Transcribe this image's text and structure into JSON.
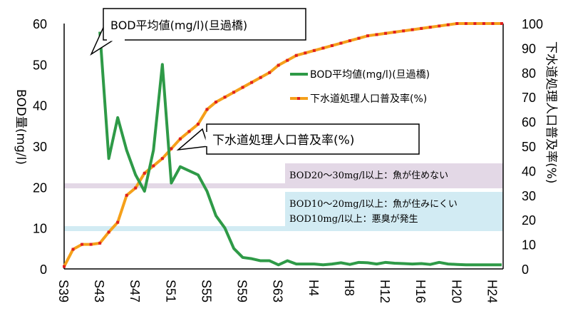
{
  "chart_data": {
    "type": "line",
    "x_categories": [
      "S39",
      "S40",
      "S41",
      "S42",
      "S43",
      "S44",
      "S45",
      "S46",
      "S47",
      "S48",
      "S49",
      "S50",
      "S51",
      "S52",
      "S53",
      "S54",
      "S55",
      "S56",
      "S57",
      "S58",
      "S59",
      "S60",
      "S61",
      "S62",
      "S63",
      "H1",
      "H2",
      "H3",
      "H4",
      "H5",
      "H6",
      "H7",
      "H8",
      "H9",
      "H10",
      "H11",
      "H12",
      "H13",
      "H14",
      "H15",
      "H16",
      "H17",
      "H18",
      "H19",
      "H20",
      "H21",
      "H22",
      "H23",
      "H24",
      "H25"
    ],
    "x_tick_labels": [
      "S39",
      "S43",
      "S47",
      "S51",
      "S55",
      "S59",
      "S63",
      "H4",
      "H8",
      "H12",
      "H16",
      "H20",
      "H24"
    ],
    "series": [
      {
        "name": "BOD平均値(mg/l)(旦過橋)",
        "axis": "left",
        "color": "#2e9a47",
        "start_index": 4,
        "values": [
          58,
          27,
          37,
          29,
          23,
          19,
          29,
          50,
          21,
          25,
          24,
          23,
          19,
          13,
          10,
          5,
          2.8,
          2.5,
          2,
          2,
          1,
          2,
          1.2,
          1.2,
          1.2,
          1,
          1.2,
          1.5,
          1.1,
          1.6,
          1.5,
          1.2,
          1.6,
          1.4,
          1.3,
          1.2,
          1.3,
          1.1,
          1.6,
          1.2,
          1.1,
          1,
          1,
          1,
          1,
          1
        ]
      },
      {
        "name": "下水道処理人口普及率(%)",
        "axis": "right",
        "color": "#f5a01a",
        "marker_color": "#e02020",
        "start_index": 0,
        "values": [
          1,
          8,
          10,
          10,
          10.5,
          15,
          19,
          30,
          33,
          39,
          42,
          45,
          49,
          53,
          56,
          59,
          65,
          68,
          70,
          72,
          74,
          76,
          78,
          80,
          83,
          85,
          87,
          88,
          89,
          90,
          91,
          92,
          93,
          94,
          95,
          95.5,
          96,
          96.5,
          97,
          97.5,
          98,
          98.5,
          99,
          99.5,
          100,
          100,
          100,
          100,
          100,
          100
        ]
      }
    ],
    "y_left": {
      "label": "BOD量(mg/l)",
      "min": 0,
      "max": 60,
      "ticks": [
        0,
        10,
        20,
        30,
        40,
        50,
        60
      ]
    },
    "y_right": {
      "label": "下水道処理人口普及率(%)",
      "min": 0,
      "max": 100,
      "ticks": [
        0,
        10,
        20,
        30,
        40,
        50,
        60,
        70,
        80,
        90,
        100
      ]
    },
    "bands": [
      {
        "y_left": 20,
        "text": "BOD20～30mg/l以上：魚が住めない",
        "color": "#e3d8e6"
      },
      {
        "y_left": 10,
        "text1": "BOD10～20mg/l以上：魚が住みにくい",
        "text2": "BOD10mg/l以上：悪臭が発生",
        "color": "#d2ebf3"
      }
    ],
    "callouts": {
      "bod": "BOD平均値(mg/l)(旦過橋)",
      "sewer": "下水道処理人口普及率(%)"
    },
    "legend_placement": "upper-right",
    "grid": false
  }
}
